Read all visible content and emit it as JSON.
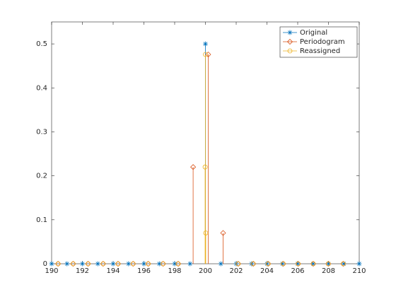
{
  "chart_data": {
    "type": "stem",
    "xlim": [
      190,
      210
    ],
    "ylim": [
      0,
      0.55
    ],
    "xticks": [
      190,
      192,
      194,
      196,
      198,
      200,
      202,
      204,
      206,
      208,
      210
    ],
    "yticks": [
      0,
      0.1,
      0.2,
      0.3,
      0.4,
      0.5
    ],
    "legend": "upper right",
    "series": [
      {
        "name": "Original",
        "color": "#0072BD",
        "marker": "star",
        "x": [
          190,
          191,
          192,
          193,
          194,
          195,
          196,
          197,
          198,
          199,
          200,
          201,
          202,
          203,
          204,
          205,
          206,
          207,
          208,
          209,
          210
        ],
        "values": [
          0,
          0,
          0,
          0,
          0,
          0,
          0,
          0,
          0,
          0,
          0.5,
          0,
          0,
          0,
          0,
          0,
          0,
          0,
          0,
          0,
          0
        ]
      },
      {
        "name": "Periodogram",
        "color": "#D95319",
        "marker": "diamond",
        "x": [
          190.42,
          191.4,
          192.37,
          193.35,
          194.32,
          195.3,
          196.28,
          197.25,
          198.23,
          199.2,
          200.18,
          201.15,
          202.13,
          203.11,
          204.08,
          205.06,
          206.03,
          207.01,
          207.99,
          208.96
        ],
        "values": [
          0,
          0,
          0,
          0,
          0,
          0,
          0,
          0,
          0,
          0.22,
          0.476,
          0.07,
          0,
          0,
          0,
          0,
          0,
          0,
          0,
          0
        ]
      },
      {
        "name": "Reassigned",
        "color": "#EDB120",
        "marker": "circle",
        "x": [
          190.42,
          191.4,
          192.37,
          193.35,
          194.32,
          195.3,
          196.28,
          197.25,
          198.23,
          199.98,
          200,
          200.02,
          202.13,
          203.11,
          204.08,
          205.06,
          206.03,
          207.01,
          207.99,
          208.96
        ],
        "values": [
          0,
          0,
          0,
          0,
          0,
          0,
          0,
          0,
          0,
          0.22,
          0.476,
          0.07,
          0,
          0,
          0,
          0,
          0,
          0,
          0,
          0
        ]
      }
    ]
  }
}
